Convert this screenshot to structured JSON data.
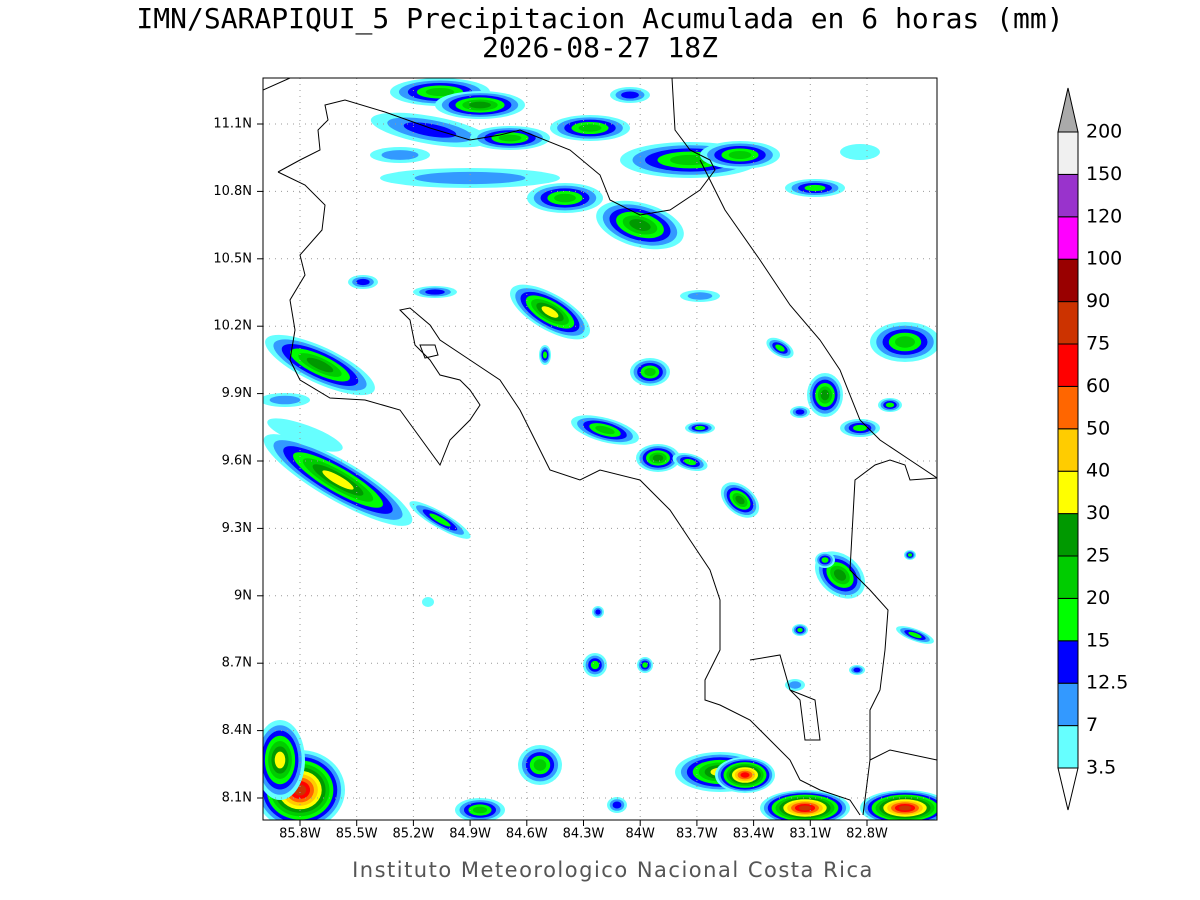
{
  "header": {
    "title": "IMN/SARAPIQUI_5 Precipitacion Acumulada en 6 horas (mm)",
    "subtitle": "2026-08-27 18Z"
  },
  "map": {
    "lon_ticks": [
      "85.8W",
      "85.5W",
      "85.2W",
      "84.9W",
      "84.6W",
      "84.3W",
      "84W",
      "83.7W",
      "83.4W",
      "83.1W",
      "82.8W"
    ],
    "lat_ticks": [
      "11.1N",
      "10.8N",
      "10.5N",
      "10.2N",
      "9.9N",
      "9.6N",
      "9.3N",
      "9N",
      "8.7N",
      "8.4N",
      "8.1N"
    ]
  },
  "colorbar": {
    "labels": [
      "3.5",
      "7",
      "12.5",
      "15",
      "20",
      "25",
      "30",
      "40",
      "50",
      "60",
      "75",
      "90",
      "100",
      "120",
      "150",
      "200"
    ],
    "colors": [
      "#66ffff",
      "#3399ff",
      "#0000ff",
      "#00ff00",
      "#00cc00",
      "#009900",
      "#ffff00",
      "#ffcc00",
      "#ff6600",
      "#ff0000",
      "#cc3300",
      "#990000",
      "#ff00ff",
      "#9933cc",
      "#f0f0f0"
    ],
    "under_color": "#ffffff",
    "over_color": "#aaaaaa"
  },
  "footer": "Instituto Meteorologico Nacional Costa Rica"
}
